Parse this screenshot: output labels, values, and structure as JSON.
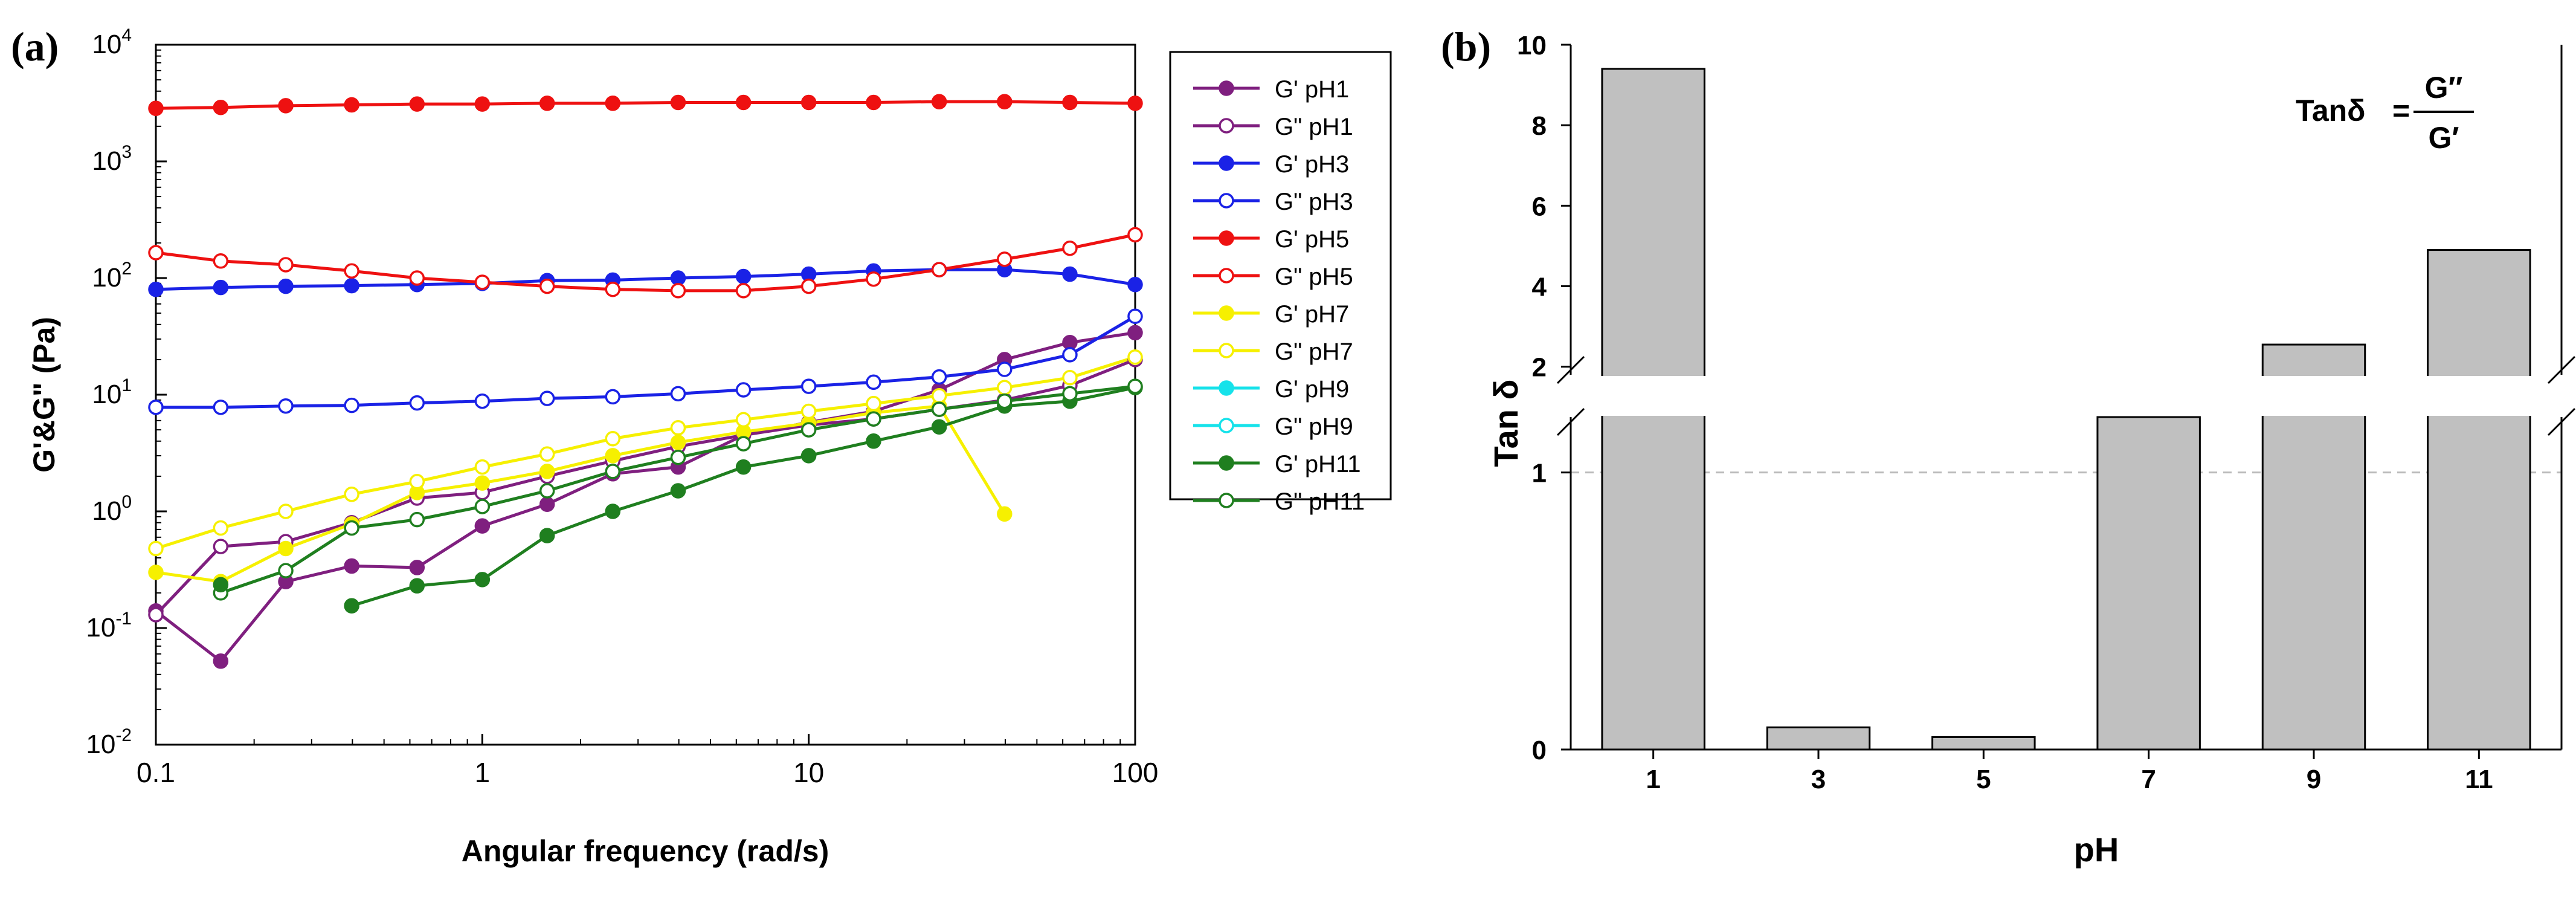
{
  "panel_a_letter": "(a)",
  "panel_b_letter": "(b)",
  "formula": {
    "lhs": "Tanδ",
    "eq": "=",
    "numerator": "G″",
    "denominator": "G′"
  },
  "colors": {
    "purple": "#7f1f7f",
    "blue": "#1a22e6",
    "red": "#ee1111",
    "yellow": "#f6f000",
    "cyan": "#16e2ea",
    "green": "#1f7f1f",
    "bar_fill": "#c0c0c0",
    "axis": "#000000",
    "ref_line": "#bbbbbb"
  },
  "chart_data": [
    {
      "type": "line",
      "title": "",
      "xlabel": "Angular frequency (rad/s)",
      "ylabel": "G'&G\" (Pa)",
      "xscale": "log",
      "yscale": "log",
      "xlim": [
        0.1,
        100
      ],
      "ylim": [
        0.01,
        10000
      ],
      "xticks": [
        {
          "value": 0.1,
          "label": "0.1"
        },
        {
          "value": 1,
          "label": "1"
        },
        {
          "value": 10,
          "label": "10"
        },
        {
          "value": 100,
          "label": "100"
        }
      ],
      "yticks": [
        {
          "value": 0.01,
          "base": "10",
          "exp": "-2"
        },
        {
          "value": 0.1,
          "base": "10",
          "exp": "-1"
        },
        {
          "value": 1,
          "base": "10",
          "exp": "0"
        },
        {
          "value": 10,
          "base": "10",
          "exp": "1"
        },
        {
          "value": 100,
          "base": "10",
          "exp": "2"
        },
        {
          "value": 1000,
          "base": "10",
          "exp": "3"
        },
        {
          "value": 10000,
          "base": "10",
          "exp": "4"
        }
      ],
      "legend_position": "outside-right",
      "series": [
        {
          "name": "G' pH1",
          "color": "#7f1f7f",
          "filled": true,
          "x": [
            0.1,
            0.158,
            0.25,
            0.398,
            0.631,
            1,
            1.58,
            2.51,
            3.98,
            6.31,
            10,
            15.8,
            25.1,
            39.8,
            63.1,
            100
          ],
          "y": [
            0.14,
            0.052,
            0.25,
            0.34,
            0.33,
            0.75,
            1.15,
            2.1,
            2.4,
            4.5,
            5.8,
            7.2,
            11,
            20,
            28,
            34
          ]
        },
        {
          "name": "G\" pH1",
          "color": "#7f1f7f",
          "filled": false,
          "x": [
            0.1,
            0.158,
            0.25,
            0.398,
            0.631,
            1,
            1.58,
            2.51,
            3.98,
            6.31,
            10,
            15.8,
            25.1,
            39.8,
            63.1,
            100
          ],
          "y": [
            0.13,
            0.5,
            0.55,
            0.8,
            1.3,
            1.45,
            2.0,
            2.7,
            3.6,
            4.5,
            5.5,
            6.2,
            7.5,
            9,
            12,
            20
          ]
        },
        {
          "name": "G' pH3",
          "color": "#1a22e6",
          "filled": true,
          "x": [
            0.1,
            0.158,
            0.25,
            0.398,
            0.631,
            1,
            1.58,
            2.51,
            3.98,
            6.31,
            10,
            15.8,
            25.1,
            39.8,
            63.1,
            100
          ],
          "y": [
            80,
            83,
            85,
            86,
            88,
            90,
            95,
            96,
            100,
            103,
            108,
            115,
            118,
            118,
            108,
            88
          ]
        },
        {
          "name": "G\" pH3",
          "color": "#1a22e6",
          "filled": false,
          "x": [
            0.1,
            0.158,
            0.25,
            0.398,
            0.631,
            1,
            1.58,
            2.51,
            3.98,
            6.31,
            10,
            15.8,
            25.1,
            39.8,
            63.1,
            100
          ],
          "y": [
            7.8,
            7.8,
            8.0,
            8.1,
            8.5,
            8.8,
            9.3,
            9.6,
            10.2,
            11.0,
            11.8,
            12.8,
            14.2,
            16.5,
            22,
            47
          ]
        },
        {
          "name": "G' pH5",
          "color": "#ee1111",
          "filled": true,
          "x": [
            0.1,
            0.158,
            0.25,
            0.398,
            0.631,
            1,
            1.58,
            2.51,
            3.98,
            6.31,
            10,
            15.8,
            25.1,
            39.8,
            63.1,
            100
          ],
          "y": [
            2850,
            2900,
            3000,
            3050,
            3100,
            3100,
            3150,
            3150,
            3200,
            3200,
            3200,
            3200,
            3250,
            3250,
            3200,
            3150
          ]
        },
        {
          "name": "G\" pH5",
          "color": "#ee1111",
          "filled": false,
          "x": [
            0.1,
            0.158,
            0.25,
            0.398,
            0.631,
            1,
            1.58,
            2.51,
            3.98,
            6.31,
            10,
            15.8,
            25.1,
            39.8,
            63.1,
            100
          ],
          "y": [
            165,
            140,
            130,
            115,
            100,
            92,
            85,
            80,
            78,
            78,
            85,
            98,
            118,
            145,
            180,
            235
          ]
        },
        {
          "name": "G' pH7",
          "color": "#f6f000",
          "filled": true,
          "x": [
            0.1,
            0.158,
            0.25,
            0.398,
            0.631,
            1,
            1.58,
            2.51,
            3.98,
            6.31,
            10,
            15.8,
            25.1,
            39.8
          ],
          "y": [
            0.3,
            0.25,
            0.48,
            0.78,
            1.45,
            1.75,
            2.2,
            3.0,
            3.9,
            4.8,
            5.7,
            7.0,
            8.0,
            0.95
          ]
        },
        {
          "name": "G\" pH7",
          "color": "#f6f000",
          "filled": false,
          "x": [
            0.1,
            0.158,
            0.25,
            0.398,
            0.631,
            1,
            1.58,
            2.51,
            3.98,
            6.31,
            10,
            15.8,
            25.1,
            39.8,
            63.1,
            100
          ],
          "y": [
            0.48,
            0.72,
            1.0,
            1.4,
            1.8,
            2.4,
            3.1,
            4.2,
            5.2,
            6.1,
            7.2,
            8.4,
            9.8,
            11.5,
            14,
            21
          ]
        },
        {
          "name": "G' pH9",
          "color": "#16e2ea",
          "filled": true,
          "x": [],
          "y": []
        },
        {
          "name": "G\" pH9",
          "color": "#16e2ea",
          "filled": false,
          "x": [],
          "y": []
        },
        {
          "name": "G' pH11",
          "color": "#1f7f1f",
          "filled": true,
          "x": [
            0.398,
            0.631,
            1,
            1.58,
            2.51,
            3.98,
            6.31,
            10,
            15.8,
            25.1,
            39.8,
            63.1,
            100
          ],
          "y": [
            0.155,
            0.23,
            0.26,
            0.62,
            1.0,
            1.5,
            2.4,
            3.0,
            4.0,
            5.3,
            8.0,
            8.8,
            11.5
          ]
        },
        {
          "name": "G\" pH11",
          "color": "#1f7f1f",
          "filled": false,
          "x": [
            0.158,
            0.25,
            0.398,
            0.631,
            1,
            1.58,
            2.51,
            3.98,
            6.31,
            10,
            15.8,
            25.1,
            39.8,
            63.1,
            100
          ],
          "y": [
            0.2,
            0.31,
            0.72,
            0.85,
            1.1,
            1.5,
            2.2,
            2.9,
            3.8,
            5.0,
            6.2,
            7.5,
            8.8,
            10.2,
            11.8
          ]
        }
      ],
      "extra_points": [
        {
          "series": "G' pH11",
          "x": 0.158,
          "y": 0.235
        }
      ]
    },
    {
      "type": "bar",
      "title": "",
      "xlabel": "pH",
      "ylabel": "Tan δ",
      "categories": [
        "1",
        "3",
        "5",
        "7",
        "9",
        "11"
      ],
      "values": [
        9.4,
        0.08,
        0.045,
        1.2,
        2.55,
        4.9
      ],
      "axis_break": {
        "lower_range": [
          0,
          1.2
        ],
        "upper_range": [
          1.8,
          10
        ]
      },
      "lower_ticks": [
        {
          "value": 0,
          "label": "0"
        },
        {
          "value": 1,
          "label": "1"
        }
      ],
      "upper_ticks": [
        {
          "value": 2,
          "label": "2"
        },
        {
          "value": 4,
          "label": "4"
        },
        {
          "value": 6,
          "label": "6"
        },
        {
          "value": 8,
          "label": "8"
        },
        {
          "value": 10,
          "label": "10"
        }
      ],
      "reference_line": 1
    }
  ]
}
